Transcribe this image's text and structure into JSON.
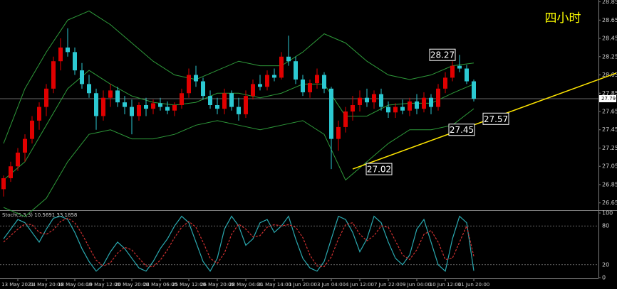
{
  "chart_data": [
    {
      "type": "candlestick",
      "title": "四小时",
      "title_color": "#ffff00",
      "open": [
        26.8,
        26.92,
        27.05,
        27.2,
        27.35,
        27.55,
        27.7,
        27.9,
        28.2,
        28.35,
        28.3,
        28.1,
        27.95,
        27.85,
        27.6,
        27.8,
        27.88,
        27.75,
        27.7,
        27.6,
        27.72,
        27.68,
        27.74,
        27.7,
        27.66,
        27.72,
        27.85,
        28.05,
        27.98,
        27.82,
        27.72,
        27.68,
        27.85,
        27.7,
        27.62,
        27.82,
        27.95,
        27.92,
        28.05,
        28.02,
        28.25,
        28.2,
        28.0,
        27.86,
        27.96,
        28.05,
        27.9,
        27.35,
        27.48,
        27.65,
        27.72,
        27.8,
        27.75,
        27.84,
        27.7,
        27.64,
        27.7,
        27.66,
        27.76,
        27.68,
        27.8,
        27.7,
        27.9,
        28.02,
        28.15,
        28.12,
        27.98
      ],
      "high": [
        26.95,
        27.1,
        27.25,
        27.4,
        27.6,
        27.75,
        27.95,
        28.25,
        28.45,
        28.56,
        28.35,
        28.18,
        28.05,
        27.9,
        27.88,
        27.95,
        27.92,
        27.82,
        27.78,
        27.75,
        27.8,
        27.78,
        27.8,
        27.76,
        27.75,
        27.9,
        28.12,
        28.15,
        28.02,
        27.88,
        27.8,
        27.9,
        27.88,
        27.8,
        27.88,
        28.0,
        28.05,
        28.1,
        28.12,
        28.3,
        28.48,
        28.25,
        28.05,
        28.0,
        28.12,
        28.08,
        27.92,
        27.55,
        27.7,
        27.82,
        27.88,
        27.9,
        27.88,
        27.9,
        27.76,
        27.74,
        27.78,
        27.8,
        27.84,
        27.86,
        27.84,
        27.95,
        28.08,
        28.2,
        28.27,
        28.16,
        28.0
      ],
      "low": [
        26.72,
        26.88,
        27.0,
        27.1,
        27.3,
        27.45,
        27.6,
        27.85,
        28.1,
        28.25,
        28.05,
        27.9,
        27.8,
        27.45,
        27.55,
        27.7,
        27.7,
        27.62,
        27.4,
        27.55,
        27.6,
        27.62,
        27.66,
        27.62,
        27.6,
        27.68,
        27.8,
        27.92,
        27.78,
        27.68,
        27.62,
        27.62,
        27.66,
        27.55,
        27.58,
        27.78,
        27.88,
        27.88,
        27.98,
        28.0,
        28.15,
        27.95,
        27.82,
        27.8,
        27.9,
        27.85,
        27.02,
        27.22,
        27.42,
        27.55,
        27.65,
        27.7,
        27.68,
        27.66,
        27.58,
        27.58,
        27.62,
        27.6,
        27.62,
        27.64,
        27.62,
        27.66,
        27.85,
        27.98,
        28.08,
        27.95,
        27.76
      ],
      "close": [
        26.92,
        27.05,
        27.2,
        27.35,
        27.55,
        27.7,
        27.9,
        28.2,
        28.35,
        28.3,
        28.1,
        27.95,
        27.85,
        27.6,
        27.8,
        27.88,
        27.75,
        27.7,
        27.6,
        27.72,
        27.68,
        27.74,
        27.7,
        27.66,
        27.72,
        27.85,
        28.05,
        27.98,
        27.82,
        27.72,
        27.68,
        27.85,
        27.7,
        27.62,
        27.82,
        27.95,
        27.92,
        28.05,
        28.02,
        28.25,
        28.2,
        28.0,
        27.86,
        27.96,
        28.05,
        27.9,
        27.35,
        27.48,
        27.65,
        27.72,
        27.8,
        27.75,
        27.84,
        27.7,
        27.64,
        27.7,
        27.66,
        27.76,
        27.68,
        27.8,
        27.7,
        27.9,
        28.02,
        28.15,
        28.12,
        27.98,
        27.79
      ],
      "up_color": "#e00000",
      "down_color": "#2cc9d2",
      "xlim": [
        -0.5,
        83.5
      ],
      "xticks": [
        {
          "value": 2,
          "label": "13 May 2021"
        },
        {
          "value": 6,
          "label": "14 May 20:00"
        },
        {
          "value": 10,
          "label": "18 May 04:00"
        },
        {
          "value": 14,
          "label": "19 May 12:00"
        },
        {
          "value": 18,
          "label": "20 May 20:00"
        },
        {
          "value": 22,
          "label": "24 May 06:00"
        },
        {
          "value": 26,
          "label": "25 May 12:00"
        },
        {
          "value": 30,
          "label": "26 May 20:00"
        },
        {
          "value": 34,
          "label": "28 May 04:00"
        },
        {
          "value": 38,
          "label": "31 May 14:00"
        },
        {
          "value": 42,
          "label": "1 Jun 20:00"
        },
        {
          "value": 46,
          "label": "3 Jun 04:00"
        },
        {
          "value": 50,
          "label": "4 Jun 12:00"
        },
        {
          "value": 54,
          "label": "7 Jun 22:00"
        },
        {
          "value": 58,
          "label": "9 Jun 04:00"
        },
        {
          "value": 62,
          "label": "10 Jun 12:00"
        },
        {
          "value": 66,
          "label": "11 Jun 20:00"
        }
      ],
      "ylim": [
        26.57,
        28.87
      ],
      "yticks": [
        26.65,
        26.85,
        27.05,
        27.25,
        27.45,
        27.65,
        27.85,
        28.05,
        28.25,
        28.45,
        28.65,
        28.85
      ],
      "bands": {
        "color": "#2e9a3a",
        "x": [
          0,
          3,
          6,
          9,
          12,
          15,
          18,
          21,
          24,
          27,
          30,
          33,
          36,
          39,
          42,
          45,
          48,
          51,
          54,
          57,
          60,
          63,
          66
        ],
        "upper": [
          27.3,
          27.9,
          28.3,
          28.65,
          28.75,
          28.6,
          28.4,
          28.2,
          28.05,
          28.0,
          28.1,
          28.2,
          28.15,
          28.15,
          28.3,
          28.5,
          28.4,
          28.2,
          28.05,
          28.0,
          28.05,
          28.15,
          28.18
        ],
        "middle": [
          26.9,
          27.1,
          27.5,
          27.9,
          28.1,
          27.95,
          27.82,
          27.75,
          27.72,
          27.75,
          27.85,
          27.85,
          27.8,
          27.85,
          27.95,
          27.95,
          27.6,
          27.6,
          27.72,
          27.74,
          27.74,
          27.85,
          27.95
        ],
        "lower": [
          26.6,
          26.5,
          26.7,
          27.1,
          27.4,
          27.45,
          27.35,
          27.35,
          27.4,
          27.5,
          27.55,
          27.5,
          27.45,
          27.5,
          27.55,
          27.4,
          26.9,
          27.1,
          27.3,
          27.45,
          27.45,
          27.5,
          27.68
        ]
      },
      "trendline": {
        "color": "#ffe600",
        "x": [
          49,
          86
        ],
        "y": [
          27.02,
          28.07
        ]
      },
      "annotations": [
        28.27,
        27.45,
        27.57,
        27.02
      ],
      "last_price": 27.79
    },
    {
      "type": "line",
      "title": "Stoch(5,3,3) 10.5691 33.1858",
      "xlim": [
        -0.5,
        83.5
      ],
      "ylim": [
        0,
        100
      ],
      "yticks": [
        0,
        20,
        80,
        100
      ],
      "series": [
        {
          "color": "#2aa9b0",
          "values": [
            60,
            75,
            90,
            85,
            70,
            55,
            75,
            92,
            95,
            90,
            70,
            45,
            25,
            10,
            20,
            40,
            55,
            45,
            30,
            15,
            10,
            25,
            45,
            60,
            80,
            95,
            85,
            55,
            25,
            10,
            30,
            75,
            95,
            80,
            50,
            60,
            85,
            90,
            70,
            80,
            95,
            60,
            30,
            15,
            10,
            25,
            60,
            95,
            90,
            70,
            40,
            60,
            95,
            85,
            55,
            30,
            20,
            35,
            75,
            90,
            55,
            20,
            10,
            60,
            95,
            85,
            10.5691
          ]
        },
        {
          "color": "#d03030",
          "dashed": true,
          "values": [
            55,
            65,
            75,
            83,
            82,
            70,
            67,
            74,
            87,
            92,
            85,
            68,
            47,
            27,
            18,
            23,
            38,
            47,
            43,
            30,
            18,
            17,
            27,
            43,
            62,
            78,
            87,
            78,
            55,
            30,
            22,
            38,
            67,
            83,
            75,
            63,
            65,
            78,
            82,
            80,
            82,
            78,
            62,
            35,
            18,
            17,
            32,
            60,
            82,
            85,
            67,
            57,
            65,
            80,
            78,
            57,
            35,
            28,
            43,
            67,
            73,
            55,
            28,
            30,
            55,
            80,
            33.1858
          ]
        }
      ]
    }
  ]
}
